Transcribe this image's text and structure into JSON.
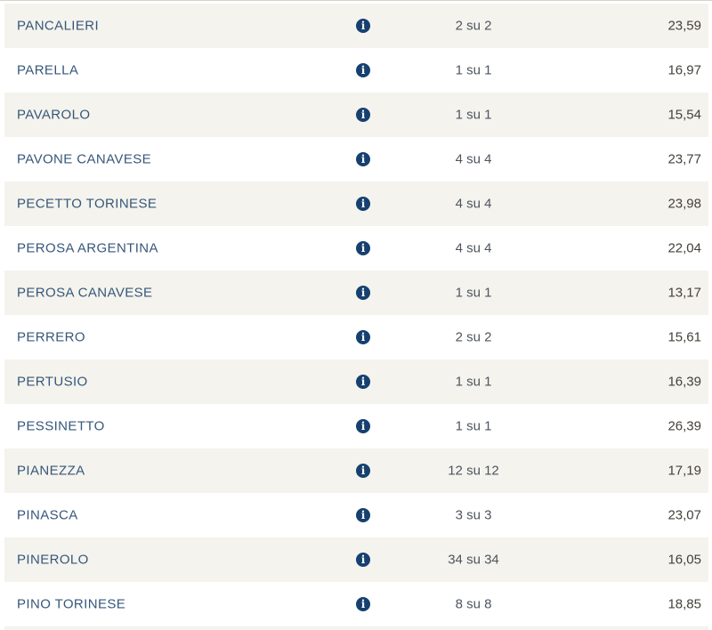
{
  "table": {
    "semantic": "election-results-municipality-table",
    "unit_word": "su",
    "rows": [
      {
        "name": "PANCALIERI",
        "sections": "2 su 2",
        "value": "23,59"
      },
      {
        "name": "PARELLA",
        "sections": "1 su 1",
        "value": "16,97"
      },
      {
        "name": "PAVAROLO",
        "sections": "1 su 1",
        "value": "15,54"
      },
      {
        "name": "PAVONE CANAVESE",
        "sections": "4 su 4",
        "value": "23,77"
      },
      {
        "name": "PECETTO TORINESE",
        "sections": "4 su 4",
        "value": "23,98"
      },
      {
        "name": "PEROSA ARGENTINA",
        "sections": "4 su 4",
        "value": "22,04"
      },
      {
        "name": "PEROSA CANAVESE",
        "sections": "1 su 1",
        "value": "13,17"
      },
      {
        "name": "PERRERO",
        "sections": "2 su 2",
        "value": "15,61"
      },
      {
        "name": "PERTUSIO",
        "sections": "1 su 1",
        "value": "16,39"
      },
      {
        "name": "PESSINETTO",
        "sections": "1 su 1",
        "value": "26,39"
      },
      {
        "name": "PIANEZZA",
        "sections": "12 su 12",
        "value": "17,19"
      },
      {
        "name": "PINASCA",
        "sections": "3 su 3",
        "value": "23,07"
      },
      {
        "name": "PINEROLO",
        "sections": "34 su 34",
        "value": "16,05"
      },
      {
        "name": "PINO TORINESE",
        "sections": "8 su 8",
        "value": "18,85"
      }
    ]
  },
  "icons": {
    "info_glyph": "i",
    "info_icon_name": "info-circle-icon"
  },
  "colors": {
    "row_alt_background": "#f4f3ed",
    "row_background": "#ffffff",
    "municipality_link": "#36577a",
    "info_icon_background": "#16406f",
    "sections_text": "#4e5560",
    "value_text": "#45413b",
    "top_border": "#d6d3ca"
  }
}
